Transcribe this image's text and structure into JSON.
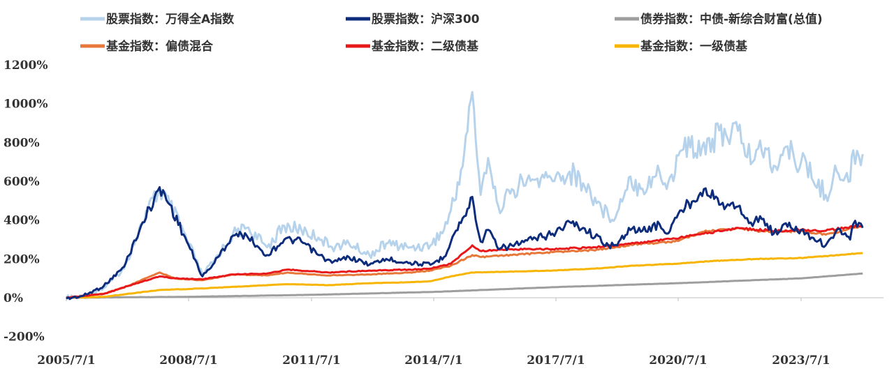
{
  "chart_data": {
    "type": "line",
    "x_tick_labels": [
      "2005/7/1",
      "2008/7/1",
      "2011/7/1",
      "2014/7/1",
      "2017/7/1",
      "2020/7/1",
      "2023/7/1"
    ],
    "y_tick_labels": [
      "-200%",
      "0%",
      "200%",
      "400%",
      "600%",
      "800%",
      "1000%",
      "1200%"
    ],
    "ylim": [
      -200,
      1200
    ],
    "xlim": [
      "2005-07-01",
      "2024-12-31"
    ],
    "grid": false,
    "legend_position": "top",
    "series": [
      {
        "name": "股票指数：万得全A指数",
        "color": "#b7d3ec",
        "points": [
          [
            "2005-07-01",
            0
          ],
          [
            "2005-12-01",
            5
          ],
          [
            "2006-06-01",
            50
          ],
          [
            "2006-12-01",
            150
          ],
          [
            "2007-05-01",
            380
          ],
          [
            "2007-10-15",
            560
          ],
          [
            "2008-01-15",
            480
          ],
          [
            "2008-06-15",
            300
          ],
          [
            "2008-11-01",
            120
          ],
          [
            "2009-02-01",
            180
          ],
          [
            "2009-08-01",
            330
          ],
          [
            "2009-12-01",
            360
          ],
          [
            "2010-06-01",
            260
          ],
          [
            "2010-11-01",
            370
          ],
          [
            "2011-04-01",
            350
          ],
          [
            "2011-09-01",
            310
          ],
          [
            "2012-01-01",
            260
          ],
          [
            "2012-06-01",
            280
          ],
          [
            "2012-12-01",
            220
          ],
          [
            "2013-05-01",
            280
          ],
          [
            "2013-12-01",
            260
          ],
          [
            "2014-06-01",
            270
          ],
          [
            "2014-10-01",
            350
          ],
          [
            "2015-01-01",
            500
          ],
          [
            "2015-04-01",
            750
          ],
          [
            "2015-06-12",
            1060
          ],
          [
            "2015-08-25",
            530
          ],
          [
            "2015-11-01",
            720
          ],
          [
            "2016-02-01",
            470
          ],
          [
            "2016-06-01",
            560
          ],
          [
            "2016-12-01",
            610
          ],
          [
            "2017-06-01",
            600
          ],
          [
            "2017-11-01",
            650
          ],
          [
            "2018-03-01",
            590
          ],
          [
            "2018-10-15",
            420
          ],
          [
            "2019-01-01",
            440
          ],
          [
            "2019-04-15",
            620
          ],
          [
            "2019-08-01",
            560
          ],
          [
            "2020-01-15",
            650
          ],
          [
            "2020-03-20",
            560
          ],
          [
            "2020-08-01",
            760
          ],
          [
            "2021-02-15",
            800
          ],
          [
            "2021-09-01",
            840
          ],
          [
            "2021-12-15",
            860
          ],
          [
            "2022-04-25",
            700
          ],
          [
            "2022-07-01",
            810
          ],
          [
            "2022-10-31",
            680
          ],
          [
            "2023-01-31",
            770
          ],
          [
            "2023-07-01",
            700
          ],
          [
            "2024-02-05",
            530
          ],
          [
            "2024-05-15",
            650
          ],
          [
            "2024-09-10",
            600
          ],
          [
            "2024-10-08",
            760
          ],
          [
            "2024-12-31",
            740
          ]
        ]
      },
      {
        "name": "股票指数：沪深300",
        "color": "#0d2d7c",
        "points": [
          [
            "2005-07-01",
            -5
          ],
          [
            "2005-12-01",
            10
          ],
          [
            "2006-06-01",
            60
          ],
          [
            "2006-12-01",
            160
          ],
          [
            "2007-05-01",
            370
          ],
          [
            "2007-10-15",
            570
          ],
          [
            "2008-01-15",
            480
          ],
          [
            "2008-06-15",
            290
          ],
          [
            "2008-11-01",
            110
          ],
          [
            "2009-02-01",
            170
          ],
          [
            "2009-08-01",
            320
          ],
          [
            "2009-12-01",
            320
          ],
          [
            "2010-06-01",
            220
          ],
          [
            "2010-11-01",
            300
          ],
          [
            "2011-04-01",
            290
          ],
          [
            "2011-09-01",
            220
          ],
          [
            "2012-01-01",
            180
          ],
          [
            "2012-06-01",
            210
          ],
          [
            "2012-12-01",
            170
          ],
          [
            "2013-05-01",
            200
          ],
          [
            "2013-12-01",
            180
          ],
          [
            "2014-06-01",
            170
          ],
          [
            "2014-10-01",
            210
          ],
          [
            "2015-01-01",
            330
          ],
          [
            "2015-04-01",
            420
          ],
          [
            "2015-06-12",
            520
          ],
          [
            "2015-08-25",
            290
          ],
          [
            "2015-11-01",
            350
          ],
          [
            "2016-02-01",
            250
          ],
          [
            "2016-06-01",
            270
          ],
          [
            "2016-12-01",
            300
          ],
          [
            "2017-06-01",
            330
          ],
          [
            "2017-11-01",
            390
          ],
          [
            "2018-03-01",
            360
          ],
          [
            "2018-10-15",
            270
          ],
          [
            "2019-01-01",
            270
          ],
          [
            "2019-04-15",
            360
          ],
          [
            "2019-08-01",
            340
          ],
          [
            "2020-01-15",
            380
          ],
          [
            "2020-03-20",
            330
          ],
          [
            "2020-08-01",
            450
          ],
          [
            "2021-02-15",
            560
          ],
          [
            "2021-09-01",
            470
          ],
          [
            "2021-12-15",
            470
          ],
          [
            "2022-04-25",
            370
          ],
          [
            "2022-07-01",
            420
          ],
          [
            "2022-10-31",
            330
          ],
          [
            "2023-01-31",
            380
          ],
          [
            "2023-07-01",
            350
          ],
          [
            "2024-02-05",
            270
          ],
          [
            "2024-05-15",
            350
          ],
          [
            "2024-09-10",
            300
          ],
          [
            "2024-10-08",
            380
          ],
          [
            "2024-12-31",
            360
          ]
        ]
      },
      {
        "name": "债券指数：中债-新综合财富(总值)",
        "color": "#9e9e9e",
        "points": [
          [
            "2005-07-01",
            0
          ],
          [
            "2008-07-01",
            5
          ],
          [
            "2011-07-01",
            15
          ],
          [
            "2014-07-01",
            30
          ],
          [
            "2017-07-01",
            55
          ],
          [
            "2020-07-01",
            75
          ],
          [
            "2023-07-01",
            100
          ],
          [
            "2024-12-31",
            125
          ]
        ]
      },
      {
        "name": "基金指数：偏债混合",
        "color": "#e8773a",
        "points": [
          [
            "2005-07-01",
            0
          ],
          [
            "2006-06-01",
            20
          ],
          [
            "2007-01-01",
            60
          ],
          [
            "2007-10-15",
            130
          ],
          [
            "2008-03-01",
            100
          ],
          [
            "2008-11-01",
            90
          ],
          [
            "2009-08-01",
            120
          ],
          [
            "2010-06-01",
            115
          ],
          [
            "2010-12-01",
            130
          ],
          [
            "2011-12-01",
            115
          ],
          [
            "2012-12-01",
            120
          ],
          [
            "2013-12-01",
            130
          ],
          [
            "2014-06-01",
            140
          ],
          [
            "2014-12-01",
            165
          ],
          [
            "2015-06-12",
            220
          ],
          [
            "2015-09-01",
            210
          ],
          [
            "2016-06-01",
            220
          ],
          [
            "2017-06-01",
            235
          ],
          [
            "2018-06-01",
            245
          ],
          [
            "2019-06-01",
            275
          ],
          [
            "2020-06-01",
            290
          ],
          [
            "2021-02-15",
            340
          ],
          [
            "2021-12-15",
            360
          ],
          [
            "2022-06-01",
            345
          ],
          [
            "2022-12-01",
            340
          ],
          [
            "2023-07-01",
            345
          ],
          [
            "2024-02-05",
            325
          ],
          [
            "2024-12-31",
            370
          ]
        ]
      },
      {
        "name": "基金指数：二级债基",
        "color": "#e8191a",
        "points": [
          [
            "2005-07-01",
            0
          ],
          [
            "2006-06-01",
            20
          ],
          [
            "2007-01-01",
            60
          ],
          [
            "2007-10-15",
            110
          ],
          [
            "2008-03-01",
            100
          ],
          [
            "2008-11-01",
            95
          ],
          [
            "2009-08-01",
            120
          ],
          [
            "2010-06-01",
            125
          ],
          [
            "2010-12-01",
            145
          ],
          [
            "2011-12-01",
            130
          ],
          [
            "2012-12-01",
            140
          ],
          [
            "2013-12-01",
            145
          ],
          [
            "2014-06-01",
            150
          ],
          [
            "2014-12-01",
            175
          ],
          [
            "2015-06-12",
            270
          ],
          [
            "2015-09-01",
            240
          ],
          [
            "2016-06-01",
            250
          ],
          [
            "2017-06-01",
            250
          ],
          [
            "2018-06-01",
            260
          ],
          [
            "2019-06-01",
            280
          ],
          [
            "2020-06-01",
            305
          ],
          [
            "2021-02-15",
            330
          ],
          [
            "2021-12-15",
            360
          ],
          [
            "2022-06-01",
            350
          ],
          [
            "2022-12-01",
            345
          ],
          [
            "2023-07-01",
            350
          ],
          [
            "2024-02-05",
            345
          ],
          [
            "2024-12-31",
            375
          ]
        ]
      },
      {
        "name": "基金指数：一级债基",
        "color": "#f7b500",
        "points": [
          [
            "2005-07-01",
            0
          ],
          [
            "2006-06-01",
            5
          ],
          [
            "2007-01-01",
            20
          ],
          [
            "2007-10-15",
            40
          ],
          [
            "2008-07-01",
            45
          ],
          [
            "2009-07-01",
            55
          ],
          [
            "2010-12-01",
            70
          ],
          [
            "2011-12-01",
            65
          ],
          [
            "2012-12-01",
            75
          ],
          [
            "2013-12-01",
            80
          ],
          [
            "2014-06-01",
            85
          ],
          [
            "2014-12-01",
            110
          ],
          [
            "2015-06-12",
            130
          ],
          [
            "2016-06-01",
            135
          ],
          [
            "2017-06-01",
            140
          ],
          [
            "2018-06-01",
            150
          ],
          [
            "2019-06-01",
            165
          ],
          [
            "2020-06-01",
            175
          ],
          [
            "2021-06-01",
            190
          ],
          [
            "2022-06-01",
            200
          ],
          [
            "2023-07-01",
            205
          ],
          [
            "2024-12-31",
            230
          ]
        ]
      }
    ]
  }
}
